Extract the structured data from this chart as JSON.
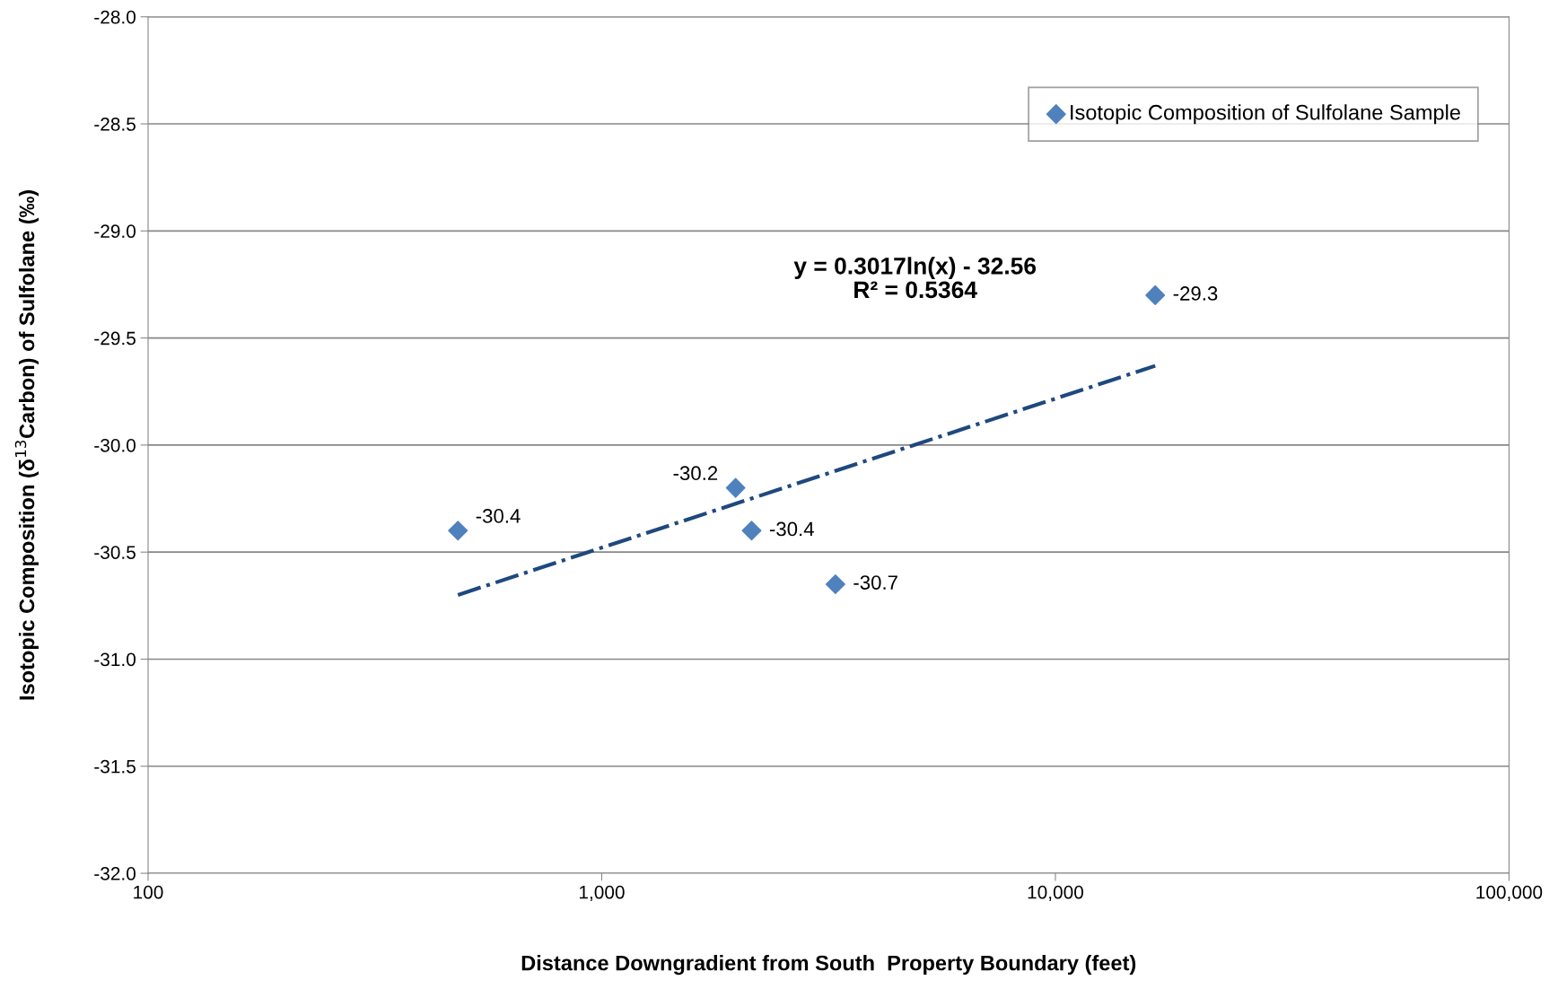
{
  "chart_data": {
    "type": "scatter",
    "xlabel": "Distance Downgradient from South  Property Boundary (feet)",
    "ylabel": "Isotopic Composition (δ$^{13}$Carbon) of Sulfolane (‰)",
    "log": "x",
    "xlim": [
      100,
      100000
    ],
    "xticks": [
      100,
      {
        "value": 1000,
        "label": "1,000"
      },
      {
        "value": 10000,
        "label": "10,000"
      },
      {
        "value": 100000,
        "label": "100,000"
      }
    ],
    "ylim": [
      -32,
      -28
    ],
    "yticks": [
      {
        "value": -32,
        "label": "-32.0"
      },
      {
        "value": -31.5,
        "label": "-31.5"
      },
      {
        "value": -31,
        "label": "-31.0"
      },
      {
        "value": -30.5,
        "label": "-30.5"
      },
      {
        "value": -30,
        "label": "-30.0"
      },
      {
        "value": -29.5,
        "label": "-29.5"
      },
      {
        "value": -29,
        "label": "-29.0"
      },
      {
        "value": -28.5,
        "label": "-28.5"
      },
      {
        "value": -28,
        "label": "-28.0"
      }
    ],
    "grid": "y",
    "legend": "top right",
    "series": [
      {
        "name": "Isotopic Composition of Sulfolane Sample",
        "marker": "diamond",
        "color": "#4f81bd",
        "x": [
          482,
          1973,
          2140,
          3275,
          16600
        ],
        "values": [
          -30.4,
          -30.2,
          -30.4,
          -30.65,
          -29.3
        ],
        "value_labels": [
          "-30.4",
          "-30.2",
          "-30.4",
          "-30.7",
          "-29.3"
        ]
      },
      {
        "type": "line",
        "color": "#1f497d",
        "line_style": "dashdot",
        "x": [
          482,
          16600
        ],
        "values": [
          -30.7,
          -29.63
        ]
      }
    ],
    "annotations": [
      "y = 0.3017ln(x) - 32.56\nR² = 0.5364"
    ]
  }
}
